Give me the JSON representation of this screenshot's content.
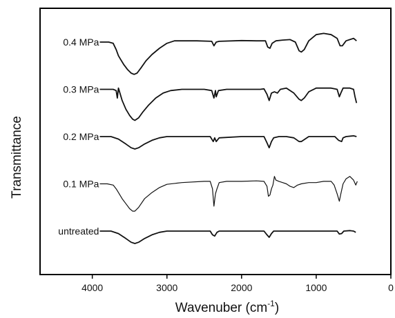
{
  "chart_data": {
    "type": "line",
    "xlabel_main": "Wavenuber (cm",
    "xlabel_sup": "-1",
    "xlabel_close": ")",
    "ylabel": "Transmittance",
    "xlim": [
      4700,
      0
    ],
    "xticks": [
      4000,
      3000,
      2000,
      1000,
      0
    ],
    "x_reversed": true,
    "y_ticks_shown": false,
    "grid": false,
    "legend": "inline labels at left of each trace",
    "series": [
      {
        "name": "0.4 MPa",
        "offset": 4,
        "points": [
          [
            3900,
            0
          ],
          [
            3780,
            0
          ],
          [
            3720,
            -0.05
          ],
          [
            3680,
            -0.3
          ],
          [
            3650,
            -0.55
          ],
          [
            3620,
            -0.7
          ],
          [
            3580,
            -0.9
          ],
          [
            3530,
            -1.1
          ],
          [
            3480,
            -1.25
          ],
          [
            3440,
            -1.3
          ],
          [
            3400,
            -1.25
          ],
          [
            3350,
            -1.05
          ],
          [
            3280,
            -0.75
          ],
          [
            3200,
            -0.5
          ],
          [
            3100,
            -0.25
          ],
          [
            3000,
            -0.05
          ],
          [
            2900,
            0.05
          ],
          [
            2800,
            0.05
          ],
          [
            2600,
            0.05
          ],
          [
            2400,
            0.03
          ],
          [
            2370,
            -0.15
          ],
          [
            2340,
            0
          ],
          [
            2300,
            0.03
          ],
          [
            2000,
            0.06
          ],
          [
            1800,
            0.05
          ],
          [
            1680,
            0.05
          ],
          [
            1650,
            -0.2
          ],
          [
            1620,
            -0.25
          ],
          [
            1590,
            -0.05
          ],
          [
            1540,
            0.05
          ],
          [
            1450,
            0.08
          ],
          [
            1350,
            0.1
          ],
          [
            1280,
            0
          ],
          [
            1230,
            -0.35
          ],
          [
            1200,
            -0.4
          ],
          [
            1160,
            -0.3
          ],
          [
            1100,
            0.05
          ],
          [
            1000,
            0.3
          ],
          [
            900,
            0.35
          ],
          [
            800,
            0.3
          ],
          [
            720,
            0.15
          ],
          [
            680,
            -0.15
          ],
          [
            650,
            -0.15
          ],
          [
            600,
            0.05
          ],
          [
            550,
            0.1
          ],
          [
            500,
            0.15
          ],
          [
            460,
            0.05
          ]
        ]
      },
      {
        "name": "0.3 MPa",
        "offset": 3,
        "points": [
          [
            3900,
            0
          ],
          [
            3720,
            0
          ],
          [
            3680,
            -0.05
          ],
          [
            3665,
            -0.35
          ],
          [
            3650,
            0.05
          ],
          [
            3640,
            -0.05
          ],
          [
            3600,
            -0.45
          ],
          [
            3550,
            -0.8
          ],
          [
            3500,
            -1.05
          ],
          [
            3460,
            -1.2
          ],
          [
            3430,
            -1.25
          ],
          [
            3380,
            -1.15
          ],
          [
            3320,
            -0.9
          ],
          [
            3250,
            -0.65
          ],
          [
            3150,
            -0.35
          ],
          [
            3050,
            -0.15
          ],
          [
            2950,
            -0.05
          ],
          [
            2800,
            0
          ],
          [
            2500,
            0
          ],
          [
            2400,
            -0.05
          ],
          [
            2370,
            -0.35
          ],
          [
            2350,
            -0.05
          ],
          [
            2340,
            -0.3
          ],
          [
            2310,
            -0.05
          ],
          [
            2200,
            0
          ],
          [
            1900,
            0
          ],
          [
            1750,
            0
          ],
          [
            1700,
            0.02
          ],
          [
            1660,
            -0.2
          ],
          [
            1630,
            -0.45
          ],
          [
            1600,
            -0.15
          ],
          [
            1560,
            -0.1
          ],
          [
            1520,
            -0.15
          ],
          [
            1480,
            0
          ],
          [
            1400,
            0.05
          ],
          [
            1300,
            -0.15
          ],
          [
            1230,
            -0.4
          ],
          [
            1200,
            -0.45
          ],
          [
            1160,
            -0.35
          ],
          [
            1100,
            -0.1
          ],
          [
            1000,
            0.05
          ],
          [
            900,
            0.05
          ],
          [
            800,
            0.05
          ],
          [
            720,
            0
          ],
          [
            690,
            -0.3
          ],
          [
            670,
            -0.15
          ],
          [
            640,
            0.05
          ],
          [
            550,
            0.05
          ],
          [
            500,
            0
          ],
          [
            480,
            -0.3
          ],
          [
            460,
            -0.55
          ]
        ]
      },
      {
        "name": "0.2 MPa",
        "offset": 2,
        "points": [
          [
            3900,
            0
          ],
          [
            3750,
            0
          ],
          [
            3650,
            -0.1
          ],
          [
            3550,
            -0.3
          ],
          [
            3480,
            -0.45
          ],
          [
            3430,
            -0.5
          ],
          [
            3380,
            -0.45
          ],
          [
            3300,
            -0.3
          ],
          [
            3200,
            -0.15
          ],
          [
            3100,
            -0.05
          ],
          [
            3000,
            0
          ],
          [
            2800,
            0
          ],
          [
            2600,
            0
          ],
          [
            2420,
            0
          ],
          [
            2380,
            -0.2
          ],
          [
            2360,
            -0.05
          ],
          [
            2340,
            -0.2
          ],
          [
            2300,
            -0.05
          ],
          [
            2000,
            0
          ],
          [
            1800,
            0
          ],
          [
            1700,
            0
          ],
          [
            1660,
            -0.25
          ],
          [
            1630,
            -0.45
          ],
          [
            1600,
            -0.2
          ],
          [
            1570,
            -0.05
          ],
          [
            1500,
            0
          ],
          [
            1400,
            0
          ],
          [
            1300,
            -0.05
          ],
          [
            1230,
            -0.2
          ],
          [
            1200,
            -0.2
          ],
          [
            1150,
            -0.1
          ],
          [
            1100,
            0
          ],
          [
            900,
            0
          ],
          [
            750,
            0
          ],
          [
            700,
            -0.15
          ],
          [
            660,
            -0.2
          ],
          [
            640,
            -0.05
          ],
          [
            600,
            0
          ],
          [
            500,
            0.03
          ],
          [
            460,
            0
          ]
        ]
      },
      {
        "name": "0.1 MPa",
        "offset": 1,
        "thin": true,
        "points": [
          [
            3900,
            0
          ],
          [
            3800,
            0
          ],
          [
            3720,
            -0.05
          ],
          [
            3680,
            -0.2
          ],
          [
            3650,
            -0.35
          ],
          [
            3600,
            -0.6
          ],
          [
            3550,
            -0.8
          ],
          [
            3500,
            -1.0
          ],
          [
            3460,
            -1.1
          ],
          [
            3430,
            -1.1
          ],
          [
            3380,
            -0.95
          ],
          [
            3300,
            -0.6
          ],
          [
            3200,
            -0.35
          ],
          [
            3100,
            -0.15
          ],
          [
            3000,
            -0.02
          ],
          [
            2800,
            0.05
          ],
          [
            2500,
            0.1
          ],
          [
            2420,
            0.1
          ],
          [
            2390,
            -0.2
          ],
          [
            2370,
            -0.9
          ],
          [
            2350,
            -0.4
          ],
          [
            2330,
            -0.2
          ],
          [
            2300,
            0.05
          ],
          [
            2200,
            0.1
          ],
          [
            2000,
            0.1
          ],
          [
            1800,
            0.12
          ],
          [
            1700,
            0.1
          ],
          [
            1660,
            -0.1
          ],
          [
            1640,
            -0.5
          ],
          [
            1620,
            -0.45
          ],
          [
            1600,
            -0.2
          ],
          [
            1580,
            -0.05
          ],
          [
            1560,
            0.3
          ],
          [
            1540,
            0.15
          ],
          [
            1500,
            0.1
          ],
          [
            1450,
            0.05
          ],
          [
            1400,
            0
          ],
          [
            1350,
            -0.1
          ],
          [
            1300,
            -0.15
          ],
          [
            1250,
            -0.05
          ],
          [
            1200,
            0
          ],
          [
            1100,
            0.05
          ],
          [
            1000,
            0.05
          ],
          [
            900,
            0.1
          ],
          [
            800,
            0.1
          ],
          [
            760,
            -0.05
          ],
          [
            720,
            -0.4
          ],
          [
            690,
            -0.7
          ],
          [
            670,
            -0.4
          ],
          [
            640,
            0
          ],
          [
            600,
            0.2
          ],
          [
            550,
            0.3
          ],
          [
            500,
            0.15
          ],
          [
            470,
            -0.05
          ],
          [
            450,
            0.1
          ]
        ]
      },
      {
        "name": "untreated",
        "offset": 0,
        "points": [
          [
            3900,
            0
          ],
          [
            3750,
            0
          ],
          [
            3650,
            -0.1
          ],
          [
            3550,
            -0.3
          ],
          [
            3480,
            -0.45
          ],
          [
            3430,
            -0.5
          ],
          [
            3380,
            -0.45
          ],
          [
            3300,
            -0.3
          ],
          [
            3200,
            -0.15
          ],
          [
            3100,
            -0.05
          ],
          [
            3000,
            0
          ],
          [
            2700,
            0
          ],
          [
            2420,
            0
          ],
          [
            2390,
            -0.15
          ],
          [
            2360,
            -0.2
          ],
          [
            2330,
            -0.05
          ],
          [
            2300,
            0
          ],
          [
            2000,
            0
          ],
          [
            1800,
            0
          ],
          [
            1700,
            0
          ],
          [
            1660,
            -0.15
          ],
          [
            1630,
            -0.25
          ],
          [
            1600,
            -0.1
          ],
          [
            1570,
            0
          ],
          [
            1400,
            0
          ],
          [
            1200,
            0
          ],
          [
            1000,
            0
          ],
          [
            800,
            0
          ],
          [
            720,
            0
          ],
          [
            690,
            -0.12
          ],
          [
            660,
            -0.1
          ],
          [
            630,
            0
          ],
          [
            550,
            0.02
          ],
          [
            500,
            0
          ],
          [
            470,
            -0.05
          ]
        ]
      }
    ]
  }
}
